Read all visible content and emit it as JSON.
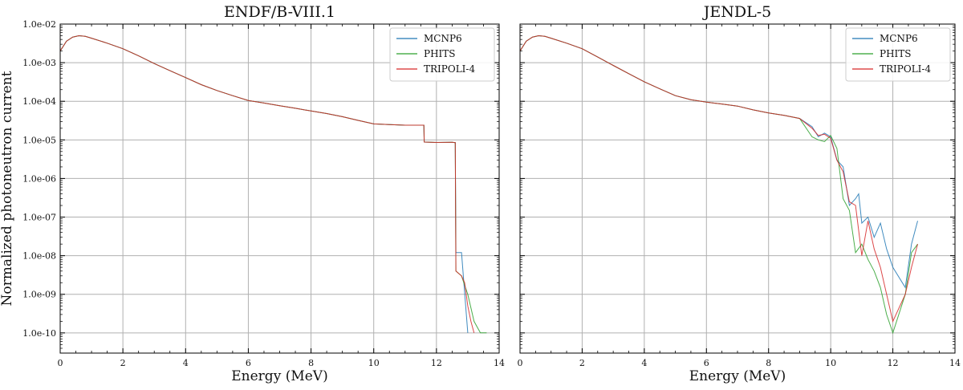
{
  "chart_data": [
    {
      "type": "line",
      "title": "ENDF/B-VIII.1",
      "xlabel": "Energy (MeV)",
      "ylabel": "Normalized photoneutron current",
      "xlim": [
        0,
        14
      ],
      "ylim": [
        3e-11,
        0.01
      ],
      "yscale": "log",
      "grid": true,
      "legend_position": "top-right",
      "x_ticks": [
        "0",
        "2",
        "4",
        "6",
        "8",
        "10",
        "12",
        "14"
      ],
      "y_ticks": [
        "1.0e-10",
        "1.0e-09",
        "1.0e-08",
        "1.0e-07",
        "1.0e-06",
        "1.0e-05",
        "1.0e-04",
        "1.0e-03",
        "1.0e-02"
      ],
      "series": [
        {
          "name": "MCNP6",
          "color": "#1f77b4",
          "x": [
            0.0,
            0.2,
            0.4,
            0.6,
            0.8,
            1.0,
            1.5,
            2.0,
            2.5,
            3.0,
            3.5,
            4.0,
            4.5,
            5.0,
            5.5,
            6.0,
            6.5,
            7.0,
            7.5,
            8.0,
            8.5,
            9.0,
            9.5,
            10.0,
            10.5,
            11.0,
            11.6,
            11.61,
            12.0,
            12.5,
            12.6,
            12.62,
            12.7,
            12.8,
            13.0
          ],
          "y": [
            0.002,
            0.0036,
            0.0046,
            0.005,
            0.0048,
            0.0043,
            0.0032,
            0.0023,
            0.0015,
            0.00095,
            0.00062,
            0.00041,
            0.00027,
            0.00019,
            0.00014,
            0.000105,
            9e-05,
            7.7e-05,
            6.6e-05,
            5.6e-05,
            4.8e-05,
            4e-05,
            3.2e-05,
            2.6e-05,
            2.5e-05,
            2.4e-05,
            2.4e-05,
            8.8e-06,
            8.6e-06,
            8.7e-06,
            8.5e-06,
            1.2e-08,
            1.2e-08,
            1.2e-08,
            1e-10
          ]
        },
        {
          "name": "PHITS",
          "color": "#2ca02c",
          "x": [
            0.0,
            0.2,
            0.4,
            0.6,
            0.8,
            1.0,
            1.5,
            2.0,
            2.5,
            3.0,
            3.5,
            4.0,
            4.5,
            5.0,
            5.5,
            6.0,
            6.5,
            7.0,
            7.5,
            8.0,
            8.5,
            9.0,
            9.5,
            10.0,
            10.5,
            11.0,
            11.6,
            11.61,
            12.0,
            12.5,
            12.6,
            12.62,
            12.8,
            13.0,
            13.2,
            13.4,
            13.6
          ],
          "y": [
            0.002,
            0.0036,
            0.0046,
            0.005,
            0.0048,
            0.0043,
            0.0032,
            0.0023,
            0.0015,
            0.00095,
            0.00062,
            0.00041,
            0.00027,
            0.00019,
            0.00014,
            0.000105,
            9e-05,
            7.7e-05,
            6.6e-05,
            5.6e-05,
            4.8e-05,
            4e-05,
            3.2e-05,
            2.6e-05,
            2.5e-05,
            2.4e-05,
            2.4e-05,
            8.8e-06,
            8.6e-06,
            8.7e-06,
            8.5e-06,
            4e-09,
            3e-09,
            1e-09,
            2e-10,
            1e-10,
            1e-10
          ]
        },
        {
          "name": "TRIPOLI-4",
          "color": "#d62728",
          "x": [
            0.0,
            0.2,
            0.4,
            0.6,
            0.8,
            1.0,
            1.5,
            2.0,
            2.5,
            3.0,
            3.5,
            4.0,
            4.5,
            5.0,
            5.5,
            6.0,
            6.5,
            7.0,
            7.5,
            8.0,
            8.5,
            9.0,
            9.5,
            10.0,
            10.5,
            11.0,
            11.6,
            11.61,
            12.0,
            12.5,
            12.6,
            12.62,
            12.8,
            12.9,
            13.0,
            13.1,
            13.2
          ],
          "y": [
            0.002,
            0.0036,
            0.0046,
            0.005,
            0.0048,
            0.0043,
            0.0032,
            0.0023,
            0.0015,
            0.00095,
            0.00062,
            0.00041,
            0.00027,
            0.00019,
            0.00014,
            0.000105,
            9e-05,
            7.7e-05,
            6.6e-05,
            5.6e-05,
            4.8e-05,
            4e-05,
            3.2e-05,
            2.6e-05,
            2.5e-05,
            2.4e-05,
            2.4e-05,
            8.8e-06,
            8.6e-06,
            8.7e-06,
            8.5e-06,
            4e-09,
            3e-09,
            2e-09,
            5e-10,
            2e-10,
            1e-10
          ]
        }
      ]
    },
    {
      "type": "line",
      "title": "JENDL-5",
      "xlabel": "Energy (MeV)",
      "ylabel": "",
      "xlim": [
        0,
        14
      ],
      "ylim": [
        3e-11,
        0.01
      ],
      "yscale": "log",
      "grid": true,
      "legend_position": "top-right",
      "x_ticks": [
        "0",
        "2",
        "4",
        "6",
        "8",
        "10",
        "12",
        "14"
      ],
      "y_ticks": [],
      "series": [
        {
          "name": "MCNP6",
          "color": "#1f77b4",
          "x": [
            0.0,
            0.2,
            0.4,
            0.6,
            0.8,
            1.0,
            1.5,
            2.0,
            2.5,
            3.0,
            3.5,
            4.0,
            4.5,
            5.0,
            5.5,
            6.0,
            6.5,
            7.0,
            7.5,
            8.0,
            8.5,
            9.0,
            9.4,
            9.6,
            9.8,
            10.0,
            10.2,
            10.4,
            10.6,
            10.8,
            10.9,
            11.0,
            11.2,
            11.4,
            11.6,
            11.8,
            12.0,
            12.4,
            12.6,
            12.8
          ],
          "y": [
            0.002,
            0.0036,
            0.0046,
            0.005,
            0.0048,
            0.0043,
            0.0032,
            0.0023,
            0.0014,
            0.00085,
            0.00052,
            0.00032,
            0.00021,
            0.00014,
            0.00011,
            9.5e-05,
            8.5e-05,
            7.5e-05,
            6e-05,
            5e-05,
            4.3e-05,
            3.6e-05,
            2.2e-05,
            1.2e-05,
            1.5e-05,
            1.2e-05,
            3e-06,
            2e-06,
            2e-07,
            3e-07,
            4e-07,
            7e-08,
            1e-07,
            3e-08,
            7e-08,
            1.5e-08,
            5e-09,
            1.5e-09,
            2e-08,
            8e-08
          ]
        },
        {
          "name": "PHITS",
          "color": "#2ca02c",
          "x": [
            0.0,
            0.2,
            0.4,
            0.6,
            0.8,
            1.0,
            1.5,
            2.0,
            2.5,
            3.0,
            3.5,
            4.0,
            4.5,
            5.0,
            5.5,
            6.0,
            6.5,
            7.0,
            7.5,
            8.0,
            8.5,
            9.0,
            9.4,
            9.6,
            9.8,
            10.0,
            10.2,
            10.4,
            10.6,
            10.8,
            11.0,
            11.2,
            11.4,
            11.6,
            11.8,
            12.0,
            12.4,
            12.6,
            12.8
          ],
          "y": [
            0.002,
            0.0036,
            0.0046,
            0.005,
            0.0048,
            0.0043,
            0.0032,
            0.0023,
            0.0014,
            0.00085,
            0.00052,
            0.00032,
            0.00021,
            0.00014,
            0.00011,
            9.5e-05,
            8.5e-05,
            7.5e-05,
            6e-05,
            5e-05,
            4.3e-05,
            3.6e-05,
            1.2e-05,
            1e-05,
            9e-06,
            1.3e-05,
            6e-06,
            3e-07,
            1.5e-07,
            1.2e-08,
            2e-08,
            8e-09,
            4e-09,
            1.5e-09,
            3e-10,
            1e-10,
            1e-09,
            1.2e-08,
            2e-08
          ]
        },
        {
          "name": "TRIPOLI-4",
          "color": "#d62728",
          "x": [
            0.0,
            0.2,
            0.4,
            0.6,
            0.8,
            1.0,
            1.5,
            2.0,
            2.5,
            3.0,
            3.5,
            4.0,
            4.5,
            5.0,
            5.5,
            6.0,
            6.5,
            7.0,
            7.5,
            8.0,
            8.5,
            9.0,
            9.4,
            9.6,
            9.8,
            10.0,
            10.2,
            10.4,
            10.6,
            10.8,
            11.0,
            11.2,
            11.4,
            11.6,
            11.8,
            12.0,
            12.4,
            12.6,
            12.8
          ],
          "y": [
            0.002,
            0.0036,
            0.0046,
            0.005,
            0.0048,
            0.0043,
            0.0032,
            0.0023,
            0.0014,
            0.00085,
            0.00052,
            0.00032,
            0.00021,
            0.00014,
            0.00011,
            9.5e-05,
            8.5e-05,
            7.5e-05,
            6e-05,
            5e-05,
            4.3e-05,
            3.6e-05,
            2e-05,
            1.3e-05,
            1.4e-05,
            1.1e-05,
            3e-06,
            1.5e-06,
            2.5e-07,
            2e-07,
            1e-08,
            8e-08,
            1.5e-08,
            5e-09,
            1e-09,
            2e-10,
            1e-09,
            5e-09,
            2e-08
          ]
        }
      ]
    }
  ]
}
